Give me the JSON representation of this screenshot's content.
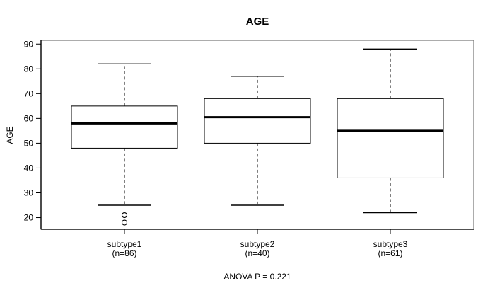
{
  "chart_data": {
    "type": "boxplot",
    "title": "AGE",
    "ylabel": "AGE",
    "footer": "ANOVA P = 0.221",
    "anova_p": 0.221,
    "ylim": [
      15.3,
      91.5
    ],
    "yticks": [
      20,
      30,
      40,
      50,
      60,
      70,
      80,
      90
    ],
    "grid": false,
    "legend": null,
    "groups": [
      {
        "label": "subtype1",
        "n_label": "(n=86)",
        "n": 86,
        "whisker_low": 25,
        "q1": 48,
        "median": 58,
        "q3": 65,
        "whisker_high": 82,
        "outliers": [
          21,
          18
        ]
      },
      {
        "label": "subtype2",
        "n_label": "(n=40)",
        "n": 40,
        "whisker_low": 25,
        "q1": 50,
        "median": 60.5,
        "q3": 68,
        "whisker_high": 77,
        "outliers": []
      },
      {
        "label": "subtype3",
        "n_label": "(n=61)",
        "n": 61,
        "whisker_low": 22,
        "q1": 36,
        "median": 55,
        "q3": 68,
        "whisker_high": 88,
        "outliers": []
      }
    ],
    "colors": {
      "line": "#000000",
      "frame": "#7f7f7f",
      "box_fill": "#ffffff",
      "background": "#ffffff"
    }
  }
}
